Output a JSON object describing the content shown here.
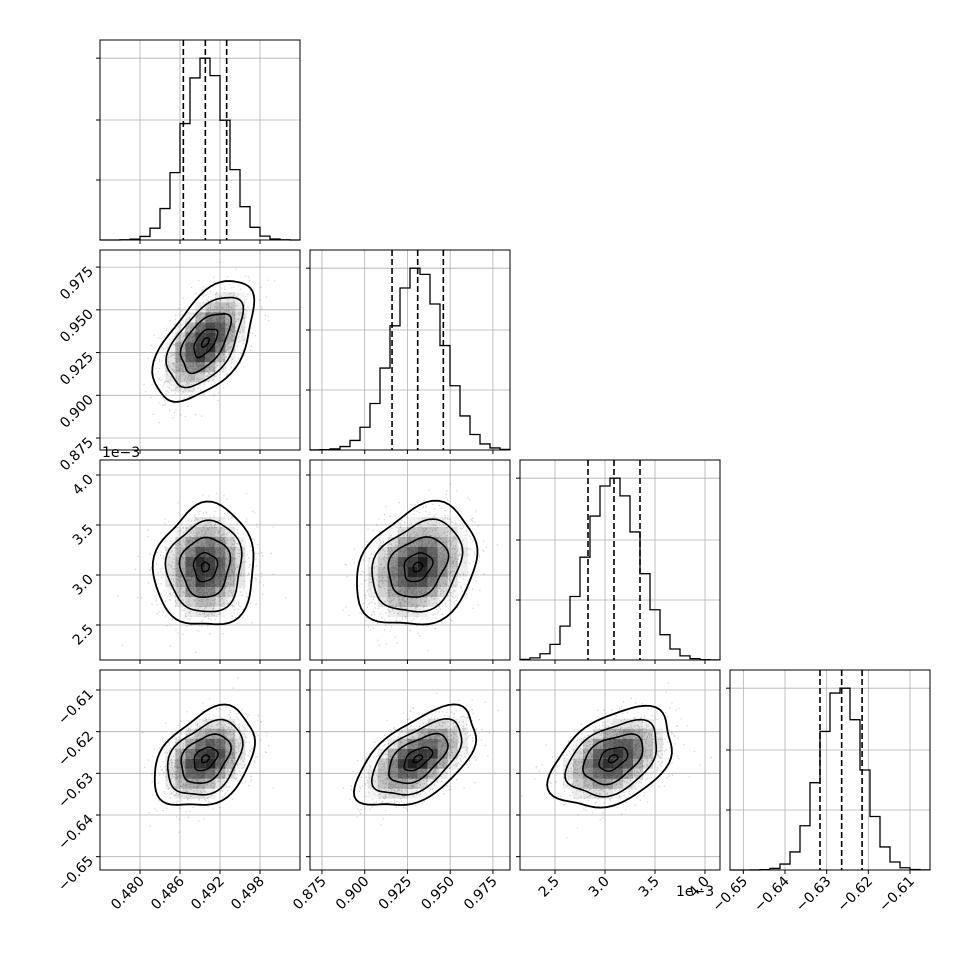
{
  "figure": {
    "type": "corner plot",
    "background": "#ffffff",
    "grid": true,
    "colors": {
      "hist": "#000000",
      "grid": "#b0b0b0",
      "scatter": "#000000",
      "density_max": "#000000"
    }
  },
  "params": [
    {
      "range": [
        0.474,
        0.504
      ],
      "ticks": [
        0.48,
        0.486,
        0.492,
        0.498
      ],
      "tick_labels": [
        "0.480",
        "0.486",
        "0.492",
        "0.498"
      ],
      "quantiles": [
        0.4865,
        0.4898,
        0.493
      ],
      "center": 0.4898,
      "sigma": 0.0032,
      "offset_label": ""
    },
    {
      "range": [
        0.868,
        0.985
      ],
      "ticks": [
        0.875,
        0.9,
        0.925,
        0.95,
        0.975
      ],
      "tick_labels": [
        "0.875",
        "0.900",
        "0.925",
        "0.950",
        "0.975"
      ],
      "quantiles": [
        0.916,
        0.931,
        0.946
      ],
      "center": 0.931,
      "sigma": 0.015,
      "offset_label": ""
    },
    {
      "range": [
        2.15,
        4.15
      ],
      "ticks": [
        2.5,
        3.0,
        3.5,
        4.0
      ],
      "tick_labels": [
        "2.5",
        "3.0",
        "3.5",
        "4.0"
      ],
      "quantiles": [
        2.83,
        3.09,
        3.35
      ],
      "center": 3.08,
      "sigma": 0.26,
      "offset_label": "1e−3"
    },
    {
      "range": [
        -0.6532,
        -0.6052
      ],
      "ticks": [
        -0.65,
        -0.64,
        -0.63,
        -0.62,
        -0.61
      ],
      "tick_labels": [
        "−0.65",
        "−0.64",
        "−0.63",
        "−0.62",
        "−0.61"
      ],
      "quantiles": [
        -0.6316,
        -0.6264,
        -0.6215
      ],
      "center": -0.6265,
      "sigma": 0.0051,
      "offset_label": ""
    }
  ],
  "correlations": {
    "1-0": 0.55,
    "2-0": 0.05,
    "2-1": 0.25,
    "3-0": 0.35,
    "3-1": 0.55,
    "3-2": 0.4
  },
  "chart_data": {
    "type": "corner",
    "title": "",
    "n_params": 4,
    "histogram_bins": 20,
    "quantile_lines": "dashed",
    "x_tick_labels": [
      [
        "0.480",
        "0.486",
        "0.492",
        "0.498"
      ],
      [
        "0.875",
        "0.900",
        "0.925",
        "0.950",
        "0.975"
      ],
      [
        "2.5",
        "3.0",
        "3.5",
        "4.0"
      ],
      [
        "−0.65",
        "−0.64",
        "−0.63",
        "−0.62",
        "−0.61"
      ]
    ],
    "y_tick_labels": [
      [],
      [
        "0.875",
        "0.900",
        "0.925",
        "0.950",
        "0.975"
      ],
      [
        "2.5",
        "3.0",
        "3.5",
        "4.0"
      ],
      [
        "−0.65",
        "−0.64",
        "−0.63",
        "−0.62",
        "−0.61"
      ]
    ],
    "offset_text": "1e−3",
    "grid": true,
    "legend": "none"
  }
}
